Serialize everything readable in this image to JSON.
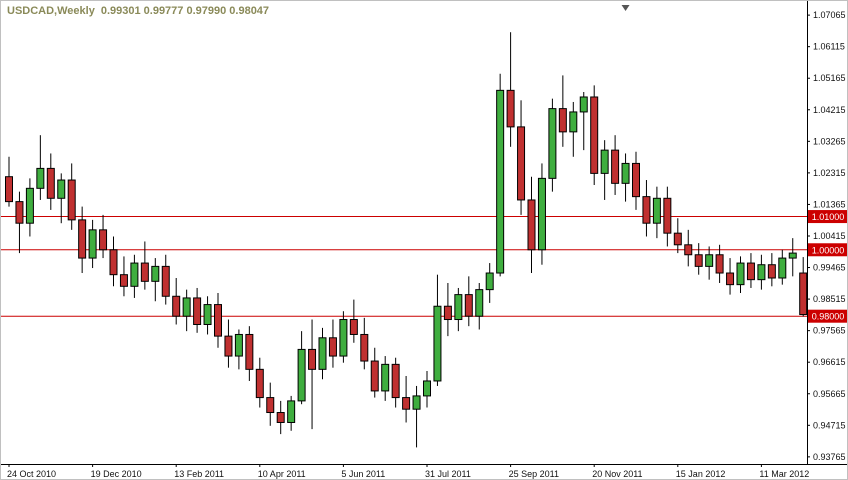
{
  "header": {
    "symbol_period": "USDCAD,Weekly",
    "ohlc": "0.99301 0.99777 0.97990 0.98047",
    "text_color": "#8a8a59"
  },
  "chart_data": {
    "type": "candlestick",
    "title": "USDCAD,Weekly",
    "background": "#ffffff",
    "grid": false,
    "bull_color": "#3fae3f",
    "bear_color": "#c03030",
    "wick_color": "#000000",
    "hline_color": "#cc0000",
    "axis_text_color": "#111111",
    "ylim": [
      0.9355,
      1.0749
    ],
    "y_axis_labels": [
      "1.07065",
      "1.06115",
      "1.05165",
      "1.04215",
      "1.03265",
      "1.02315",
      "1.01365",
      "1.00415",
      "0.99465",
      "0.98515",
      "0.97565",
      "0.96615",
      "0.95665",
      "0.94715",
      "0.93765"
    ],
    "x_labels": [
      "24 Oct 2010",
      "19 Dec 2010",
      "13 Feb 2011",
      "10 Apr 2011",
      "5 Jun 2011",
      "31 Jul 2011",
      "25 Sep 2011",
      "20 Nov 2011",
      "15 Jan 2012",
      "11 Mar 2012"
    ],
    "x_label_indices": [
      0,
      8,
      16,
      24,
      32,
      40,
      48,
      56,
      64,
      72
    ],
    "hlines": [
      {
        "price": 1.01,
        "label": "1.01000"
      },
      {
        "price": 1.0,
        "label": "1.00000"
      },
      {
        "price": 0.98,
        "label": "0.98000"
      }
    ],
    "shift_marker_index": 59,
    "candles": [
      [
        1.022,
        1.028,
        1.013,
        1.0145
      ],
      [
        1.0145,
        1.0175,
        0.999,
        1.008
      ],
      [
        1.008,
        1.0215,
        1.004,
        1.0185
      ],
      [
        1.0185,
        1.0345,
        1.015,
        1.0245
      ],
      [
        1.0245,
        1.029,
        1.012,
        1.0155
      ],
      [
        1.0155,
        1.023,
        1.008,
        1.021
      ],
      [
        1.021,
        1.026,
        1.006,
        1.009
      ],
      [
        1.009,
        1.013,
        0.993,
        0.9975
      ],
      [
        0.9975,
        1.009,
        0.9945,
        1.006
      ],
      [
        1.006,
        1.0105,
        0.9975,
        1.0
      ],
      [
        1.0,
        1.004,
        0.989,
        0.9925
      ],
      [
        0.9925,
        0.998,
        0.986,
        0.989
      ],
      [
        0.989,
        0.9985,
        0.9855,
        0.996
      ],
      [
        0.996,
        1.0025,
        0.988,
        0.9905
      ],
      [
        0.9905,
        0.9975,
        0.9845,
        0.995
      ],
      [
        0.995,
        0.9985,
        0.9835,
        0.986
      ],
      [
        0.986,
        0.9915,
        0.9775,
        0.98
      ],
      [
        0.98,
        0.988,
        0.9755,
        0.9855
      ],
      [
        0.9855,
        0.9885,
        0.975,
        0.9775
      ],
      [
        0.9775,
        0.986,
        0.9745,
        0.9835
      ],
      [
        0.9835,
        0.987,
        0.9705,
        0.974
      ],
      [
        0.974,
        0.979,
        0.9645,
        0.968
      ],
      [
        0.968,
        0.976,
        0.964,
        0.9745
      ],
      [
        0.9745,
        0.977,
        0.9605,
        0.964
      ],
      [
        0.964,
        0.9675,
        0.9525,
        0.9555
      ],
      [
        0.9555,
        0.96,
        0.947,
        0.951
      ],
      [
        0.951,
        0.9545,
        0.9445,
        0.948
      ],
      [
        0.948,
        0.956,
        0.9455,
        0.9545
      ],
      [
        0.9545,
        0.9755,
        0.9535,
        0.97
      ],
      [
        0.97,
        0.979,
        0.946,
        0.964
      ],
      [
        0.964,
        0.9765,
        0.961,
        0.9735
      ],
      [
        0.9735,
        0.979,
        0.9645,
        0.968
      ],
      [
        0.968,
        0.9815,
        0.966,
        0.979
      ],
      [
        0.979,
        0.985,
        0.972,
        0.9745
      ],
      [
        0.9745,
        0.9795,
        0.964,
        0.9665
      ],
      [
        0.9665,
        0.9705,
        0.9555,
        0.9575
      ],
      [
        0.9575,
        0.968,
        0.9545,
        0.9655
      ],
      [
        0.9655,
        0.9675,
        0.9525,
        0.9555
      ],
      [
        0.9555,
        0.962,
        0.948,
        0.952
      ],
      [
        0.952,
        0.959,
        0.9405,
        0.956
      ],
      [
        0.956,
        0.9635,
        0.9525,
        0.9605
      ],
      [
        0.9605,
        0.9925,
        0.959,
        0.983
      ],
      [
        0.983,
        0.99,
        0.974,
        0.979
      ],
      [
        0.979,
        0.9885,
        0.9755,
        0.9865
      ],
      [
        0.9865,
        0.992,
        0.977,
        0.98
      ],
      [
        0.98,
        0.99,
        0.976,
        0.988
      ],
      [
        0.988,
        0.996,
        0.984,
        0.993
      ],
      [
        0.993,
        1.053,
        0.992,
        1.048
      ],
      [
        1.048,
        1.0655,
        1.031,
        1.037
      ],
      [
        1.037,
        1.045,
        1.0105,
        1.015
      ],
      [
        1.015,
        1.022,
        0.993,
        1.0
      ],
      [
        1.0,
        1.026,
        0.9955,
        1.0215
      ],
      [
        1.0215,
        1.0455,
        1.0175,
        1.0425
      ],
      [
        1.0425,
        1.0525,
        1.031,
        1.0355
      ],
      [
        1.0355,
        1.0445,
        1.028,
        1.0415
      ],
      [
        1.0415,
        1.0475,
        1.03,
        1.046
      ],
      [
        1.046,
        1.0495,
        1.0195,
        1.023
      ],
      [
        1.023,
        1.033,
        1.015,
        1.03
      ],
      [
        1.03,
        1.0345,
        1.0165,
        1.02
      ],
      [
        1.02,
        1.029,
        1.0145,
        1.026
      ],
      [
        1.026,
        1.0295,
        1.012,
        1.016
      ],
      [
        1.016,
        1.021,
        1.004,
        1.008
      ],
      [
        1.008,
        1.019,
        1.0035,
        1.0155
      ],
      [
        1.0155,
        1.019,
        1.001,
        1.005
      ],
      [
        1.005,
        1.0095,
        0.999,
        1.0015
      ],
      [
        1.0015,
        1.006,
        0.995,
        0.9985
      ],
      [
        0.9985,
        1.002,
        0.9925,
        0.995
      ],
      [
        0.995,
        1.001,
        0.991,
        0.9985
      ],
      [
        0.9985,
        1.0015,
        0.99,
        0.993
      ],
      [
        0.993,
        0.9975,
        0.9865,
        0.9895
      ],
      [
        0.9895,
        0.998,
        0.987,
        0.996
      ],
      [
        0.996,
        0.999,
        0.9885,
        0.991
      ],
      [
        0.991,
        0.9985,
        0.988,
        0.9955
      ],
      [
        0.9955,
        0.999,
        0.989,
        0.9915
      ],
      [
        0.9915,
        1.0,
        0.9895,
        0.9975
      ],
      [
        0.9975,
        1.0035,
        0.992,
        0.999
      ],
      [
        0.993,
        0.9978,
        0.9799,
        0.9805
      ]
    ]
  }
}
